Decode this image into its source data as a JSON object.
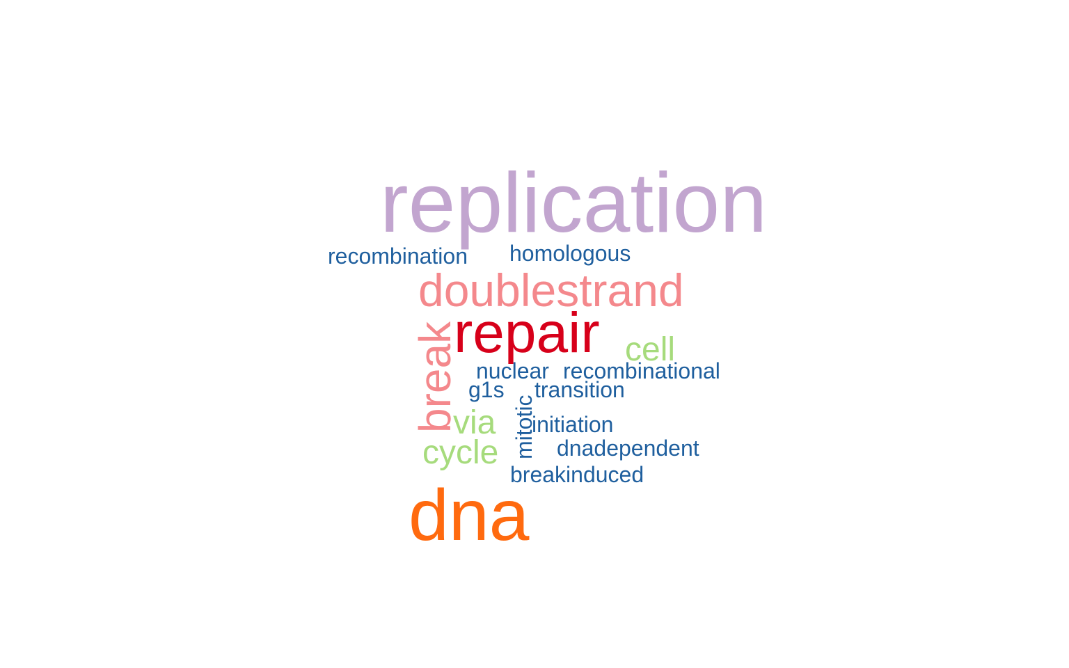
{
  "colors": {
    "purple": "#c2a5cf",
    "blue": "#1f5f9e",
    "salmon": "#f4888c",
    "red": "#d7001a",
    "green": "#a6db7c",
    "orange": "#ff6a0f"
  },
  "words": [
    {
      "id": "replication",
      "text": "replication",
      "color": "#c2a5cf",
      "orientation": "horizontal"
    },
    {
      "id": "recombination",
      "text": "recombination",
      "color": "#1f5f9e",
      "orientation": "horizontal"
    },
    {
      "id": "homologous",
      "text": "homologous",
      "color": "#1f5f9e",
      "orientation": "horizontal"
    },
    {
      "id": "doublestrand",
      "text": "doublestrand",
      "color": "#f4888c",
      "orientation": "horizontal"
    },
    {
      "id": "repair",
      "text": "repair",
      "color": "#d7001a",
      "orientation": "horizontal"
    },
    {
      "id": "break",
      "text": "break",
      "color": "#f4888c",
      "orientation": "vertical"
    },
    {
      "id": "cell",
      "text": "cell",
      "color": "#a6db7c",
      "orientation": "horizontal"
    },
    {
      "id": "nuclear",
      "text": "nuclear",
      "color": "#1f5f9e",
      "orientation": "horizontal"
    },
    {
      "id": "recombinational",
      "text": "recombinational",
      "color": "#1f5f9e",
      "orientation": "horizontal"
    },
    {
      "id": "g1s",
      "text": "g1s",
      "color": "#1f5f9e",
      "orientation": "horizontal"
    },
    {
      "id": "transition",
      "text": "transition",
      "color": "#1f5f9e",
      "orientation": "horizontal"
    },
    {
      "id": "via",
      "text": "via",
      "color": "#a6db7c",
      "orientation": "horizontal"
    },
    {
      "id": "mitotic",
      "text": "mitotic",
      "color": "#1f5f9e",
      "orientation": "vertical"
    },
    {
      "id": "initiation",
      "text": "initiation",
      "color": "#1f5f9e",
      "orientation": "horizontal"
    },
    {
      "id": "cycle",
      "text": "cycle",
      "color": "#a6db7c",
      "orientation": "horizontal"
    },
    {
      "id": "dnadependent",
      "text": "dnadependent",
      "color": "#1f5f9e",
      "orientation": "horizontal"
    },
    {
      "id": "breakinduced",
      "text": "breakinduced",
      "color": "#1f5f9e",
      "orientation": "horizontal"
    },
    {
      "id": "dna",
      "text": "dna",
      "color": "#ff6a0f",
      "orientation": "horizontal"
    }
  ]
}
